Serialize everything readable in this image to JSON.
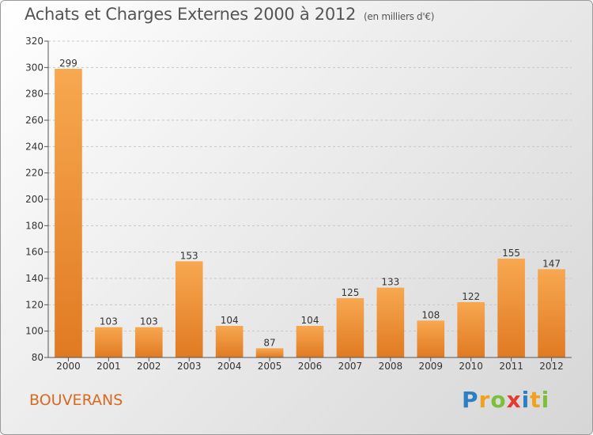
{
  "header": {
    "title": "Achats et Charges Externes 2000 à 2012",
    "subtitle": "(en milliers d'€)"
  },
  "footer": {
    "place": "BOUVERANS",
    "logo": [
      "P",
      "r",
      "o",
      "x",
      "i",
      "t",
      "i"
    ]
  },
  "colors": {
    "bar_top": "#f7a850",
    "bar_bottom": "#e07a22",
    "place_text": "#d86a20",
    "logo": [
      "#2c7fc4",
      "#f0a11e",
      "#7bbf3a",
      "#e53a2f",
      "#2c7fc4",
      "#f0a11e",
      "#7bbf3a"
    ]
  },
  "chart_data": {
    "type": "bar",
    "categories": [
      "2000",
      "2001",
      "2002",
      "2003",
      "2004",
      "2005",
      "2006",
      "2007",
      "2008",
      "2009",
      "2010",
      "2011",
      "2012"
    ],
    "values": [
      299,
      103,
      103,
      153,
      104,
      87,
      104,
      125,
      133,
      108,
      122,
      155,
      147
    ],
    "ylim": [
      80,
      320
    ],
    "yticks": [
      80,
      100,
      120,
      140,
      160,
      180,
      200,
      220,
      240,
      260,
      280,
      300,
      320
    ],
    "grid": true
  }
}
